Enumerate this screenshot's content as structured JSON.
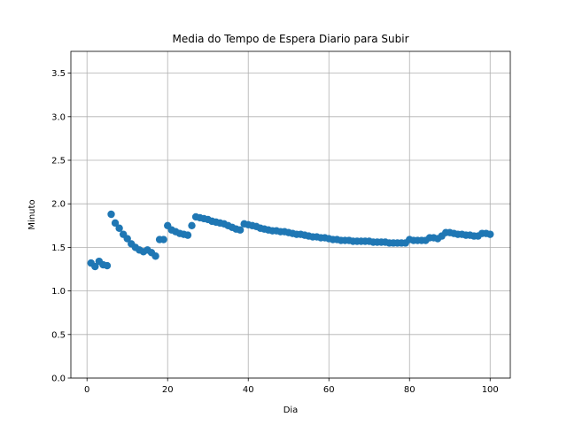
{
  "chart_data": {
    "type": "scatter",
    "title": "Media do Tempo de Espera Diario para Subir",
    "xlabel": "Dia",
    "ylabel": "Minuto",
    "xlim": [
      -4,
      105
    ],
    "ylim": [
      0,
      3.75
    ],
    "xticks": [
      0,
      20,
      40,
      60,
      80,
      100
    ],
    "yticks": [
      0.0,
      0.5,
      1.0,
      1.5,
      2.0,
      2.5,
      3.0,
      3.5
    ],
    "xtick_labels": [
      "0",
      "20",
      "40",
      "60",
      "80",
      "100"
    ],
    "ytick_labels": [
      "0.0",
      "0.5",
      "1.0",
      "1.5",
      "2.0",
      "2.5",
      "3.0",
      "3.5"
    ],
    "grid": true,
    "marker_color": "#1f77b4",
    "series": [
      {
        "x": [
          1,
          2,
          3,
          4,
          5,
          6,
          7,
          8,
          9,
          10,
          11,
          12,
          13,
          14,
          15,
          16,
          17,
          18,
          19,
          20,
          21,
          22,
          23,
          24,
          25,
          26,
          27,
          28,
          29,
          30,
          31,
          32,
          33,
          34,
          35,
          36,
          37,
          38,
          39,
          40,
          41,
          42,
          43,
          44,
          45,
          46,
          47,
          48,
          49,
          50,
          51,
          52,
          53,
          54,
          55,
          56,
          57,
          58,
          59,
          60,
          61,
          62,
          63,
          64,
          65,
          66,
          67,
          68,
          69,
          70,
          71,
          72,
          73,
          74,
          75,
          76,
          77,
          78,
          79,
          80,
          81,
          82,
          83,
          84,
          85,
          86,
          87,
          88,
          89,
          90,
          91,
          92,
          93,
          94,
          95,
          96,
          97,
          98,
          99,
          100
        ],
        "y": [
          1.32,
          1.28,
          1.34,
          1.3,
          1.29,
          1.88,
          1.78,
          1.72,
          1.65,
          1.6,
          1.54,
          1.5,
          1.47,
          1.45,
          1.47,
          1.44,
          1.4,
          1.59,
          1.59,
          1.75,
          1.7,
          1.68,
          1.66,
          1.65,
          1.64,
          1.75,
          1.85,
          1.84,
          1.83,
          1.82,
          1.8,
          1.79,
          1.78,
          1.77,
          1.75,
          1.73,
          1.71,
          1.7,
          1.77,
          1.76,
          1.75,
          1.74,
          1.72,
          1.71,
          1.7,
          1.69,
          1.69,
          1.68,
          1.68,
          1.67,
          1.66,
          1.65,
          1.65,
          1.64,
          1.63,
          1.62,
          1.62,
          1.61,
          1.61,
          1.6,
          1.59,
          1.59,
          1.58,
          1.58,
          1.58,
          1.57,
          1.57,
          1.57,
          1.57,
          1.57,
          1.56,
          1.56,
          1.56,
          1.56,
          1.55,
          1.55,
          1.55,
          1.55,
          1.55,
          1.59,
          1.58,
          1.58,
          1.58,
          1.58,
          1.61,
          1.61,
          1.6,
          1.63,
          1.67,
          1.67,
          1.66,
          1.65,
          1.65,
          1.64,
          1.64,
          1.63,
          1.63,
          1.66,
          1.66,
          1.65
        ]
      }
    ]
  }
}
